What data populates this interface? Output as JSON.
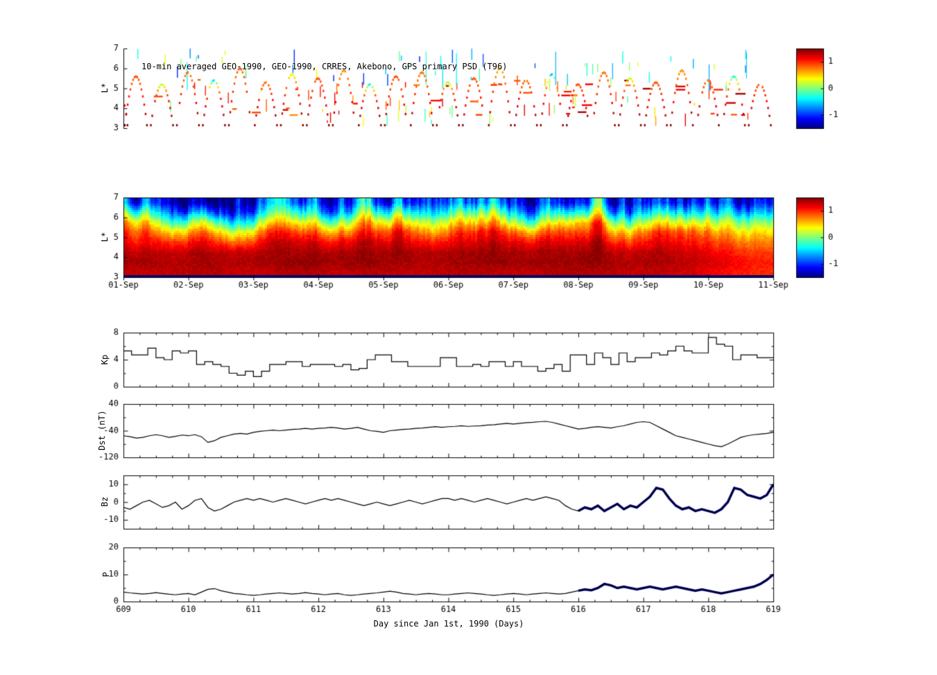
{
  "figure": {
    "background": "#ffffff"
  },
  "x_axis": {
    "label": "Day since Jan 1st, 1990 (Days)",
    "ticks": [
      609,
      610,
      611,
      612,
      613,
      614,
      615,
      616,
      617,
      618,
      619
    ]
  },
  "chart_data": [
    {
      "id": "psd_scatter",
      "type": "scatter",
      "title": "10-min averaged GEO-1990, GEO-1990, CRRES, Akebono, GPS primary PSD (T96)",
      "ylabel": "L*",
      "ylim": [
        3,
        7
      ],
      "yticks": [
        3,
        4,
        5,
        6,
        7
      ],
      "xlim": [
        609,
        619
      ],
      "colorbar": {
        "ticks": [
          1,
          0,
          -1
        ],
        "clim": [
          -1.5,
          1.5
        ],
        "colormap": "jet"
      },
      "arcs": [
        [
          608.72,
          0.34,
          5.5,
          0.8
        ],
        [
          609.02,
          0.34,
          5.6,
          0.9
        ],
        [
          609.42,
          0.34,
          5.2,
          0.2
        ],
        [
          609.82,
          0.34,
          5.8,
          0.8
        ],
        [
          610.22,
          0.34,
          5.4,
          -0.5
        ],
        [
          610.62,
          0.34,
          6.0,
          0.9
        ],
        [
          611.02,
          0.34,
          5.3,
          0.8
        ],
        [
          611.42,
          0.34,
          5.7,
          0.3
        ],
        [
          611.82,
          0.34,
          5.5,
          0.9
        ],
        [
          612.22,
          0.34,
          5.9,
          0.7
        ],
        [
          612.62,
          0.34,
          5.2,
          -0.4
        ],
        [
          613.02,
          0.34,
          5.6,
          0.9
        ],
        [
          613.42,
          0.34,
          5.8,
          0.8
        ],
        [
          613.82,
          0.34,
          5.3,
          0.1
        ],
        [
          614.22,
          0.34,
          5.5,
          0.9
        ],
        [
          614.62,
          0.34,
          6.0,
          0.6
        ],
        [
          615.02,
          0.34,
          5.4,
          0.8
        ],
        [
          615.42,
          0.34,
          5.7,
          -0.6
        ],
        [
          615.82,
          0.34,
          5.2,
          0.9
        ],
        [
          616.22,
          0.34,
          5.8,
          0.8
        ],
        [
          616.62,
          0.34,
          5.5,
          0.2
        ],
        [
          617.02,
          0.34,
          5.3,
          0.9
        ],
        [
          617.42,
          0.34,
          5.9,
          0.7
        ],
        [
          617.82,
          0.34,
          5.4,
          0.8
        ],
        [
          618.22,
          0.34,
          5.6,
          -0.3
        ],
        [
          618.62,
          0.34,
          5.2,
          0.9
        ]
      ],
      "noise_segments": {
        "count": 140,
        "seed": 7
      }
    },
    {
      "id": "psd_heatmap",
      "type": "heatmap",
      "ylabel": "L*",
      "ylim": [
        3,
        7
      ],
      "yticks": [
        3,
        4,
        5,
        6,
        7
      ],
      "xlim": [
        609,
        619
      ],
      "xtick_labels": [
        "01-Sep",
        "02-Sep",
        "03-Sep",
        "04-Sep",
        "05-Sep",
        "06-Sep",
        "07-Sep",
        "08-Sep",
        "09-Sep",
        "10-Sep",
        "11-Sep"
      ],
      "colorbar": {
        "ticks": [
          1,
          0,
          -1
        ],
        "clim": [
          -1.5,
          1.5
        ],
        "colormap": "jet"
      },
      "grid": {
        "t_start": 609,
        "t_step_days": 0.5,
        "l_values_bottom_to_top": [
          3.25,
          3.75,
          4.25,
          4.75,
          5.25,
          5.75,
          6.25,
          6.75
        ],
        "rows_bottom_to_top": [
          [
            1.3,
            1.3,
            1.35,
            1.3,
            1.3,
            1.35,
            1.3,
            1.35,
            1.3,
            1.3,
            1.35,
            1.3,
            1.3,
            1.35,
            1.35,
            1.3,
            1.3,
            1.25,
            1.1,
            1.0
          ],
          [
            1.4,
            1.35,
            1.4,
            1.35,
            1.4,
            1.45,
            1.4,
            1.45,
            1.4,
            1.35,
            1.4,
            1.45,
            1.4,
            1.4,
            1.45,
            1.35,
            1.4,
            1.3,
            1.2,
            1.05
          ],
          [
            1.35,
            1.3,
            1.4,
            1.3,
            1.35,
            1.4,
            1.35,
            1.4,
            1.4,
            1.3,
            1.4,
            1.4,
            1.35,
            1.4,
            1.45,
            1.25,
            1.35,
            1.25,
            1.1,
            0.95
          ],
          [
            1.2,
            1.0,
            1.25,
            0.8,
            1.2,
            1.3,
            1.1,
            1.3,
            1.25,
            1.0,
            1.2,
            1.3,
            1.1,
            1.25,
            1.35,
            0.9,
            1.2,
            1.1,
            0.9,
            0.75
          ],
          [
            1.1,
            0.5,
            1.0,
            0.2,
            0.9,
            1.0,
            0.6,
            1.0,
            1.1,
            0.5,
            1.0,
            1.1,
            0.6,
            1.0,
            1.1,
            0.4,
            1.0,
            0.9,
            0.6,
            0.5
          ],
          [
            0.8,
            -0.2,
            0.5,
            -0.5,
            0.3,
            0.5,
            -0.1,
            0.6,
            0.5,
            0.0,
            0.5,
            0.6,
            -0.2,
            0.5,
            0.9,
            -0.3,
            0.4,
            0.3,
            0.2,
            0.1
          ],
          [
            0.2,
            -0.8,
            -0.3,
            -1.1,
            -0.4,
            -0.1,
            -0.9,
            0.0,
            -0.2,
            -0.7,
            -0.1,
            0.0,
            -0.9,
            -0.2,
            0.1,
            -1.0,
            -0.3,
            -0.4,
            -0.4,
            -0.5
          ],
          [
            -0.5,
            -1.2,
            -1.0,
            -1.3,
            -0.9,
            -0.7,
            -1.2,
            -0.6,
            -1.0,
            -1.2,
            -0.8,
            -0.7,
            -1.3,
            -0.9,
            -0.5,
            -1.4,
            -1.0,
            -1.0,
            -0.9,
            -1.0
          ]
        ]
      }
    },
    {
      "id": "kp",
      "type": "line",
      "step": true,
      "ylabel": "Kp",
      "ylim": [
        0,
        8
      ],
      "yticks": [
        0,
        4,
        8
      ],
      "yminors": [
        2,
        6
      ],
      "t0": 609,
      "dt": 0.125,
      "values": [
        5.3,
        4.7,
        4.7,
        5.7,
        4.3,
        4.0,
        5.3,
        5.0,
        5.3,
        3.3,
        3.7,
        3.3,
        3.0,
        2.0,
        1.7,
        2.3,
        1.5,
        2.3,
        3.3,
        3.3,
        3.7,
        3.7,
        3.0,
        3.3,
        3.3,
        3.3,
        3.0,
        3.3,
        2.5,
        2.7,
        4.0,
        4.7,
        4.7,
        3.7,
        3.7,
        3.0,
        3.0,
        3.0,
        3.0,
        4.3,
        4.3,
        3.0,
        3.0,
        3.3,
        3.0,
        3.7,
        3.7,
        3.0,
        3.7,
        3.0,
        3.0,
        2.3,
        2.7,
        3.3,
        2.3,
        4.7,
        4.7,
        3.3,
        5.0,
        4.3,
        3.3,
        5.0,
        3.7,
        4.3,
        4.3,
        5.0,
        4.7,
        5.3,
        6.0,
        5.3,
        5.0,
        5.0,
        7.3,
        6.3,
        6.0,
        4.0,
        4.7,
        4.7,
        4.3,
        4.3
      ]
    },
    {
      "id": "dst",
      "type": "line",
      "ylabel": "Dst (nT)",
      "ylim": [
        -120,
        40
      ],
      "yticks": [
        40,
        -40,
        -120
      ],
      "yminors": [
        0,
        -80
      ],
      "t0": 609,
      "dt": 0.1,
      "values": [
        -55,
        -58,
        -62,
        -60,
        -55,
        -52,
        -55,
        -60,
        -57,
        -53,
        -55,
        -52,
        -58,
        -75,
        -70,
        -60,
        -55,
        -50,
        -48,
        -50,
        -45,
        -42,
        -40,
        -38,
        -40,
        -38,
        -36,
        -35,
        -33,
        -35,
        -33,
        -32,
        -30,
        -32,
        -35,
        -33,
        -30,
        -35,
        -40,
        -42,
        -45,
        -40,
        -38,
        -36,
        -35,
        -33,
        -32,
        -30,
        -28,
        -30,
        -28,
        -27,
        -25,
        -27,
        -26,
        -25,
        -23,
        -22,
        -20,
        -18,
        -20,
        -18,
        -16,
        -15,
        -13,
        -12,
        -15,
        -20,
        -25,
        -30,
        -35,
        -33,
        -30,
        -28,
        -30,
        -32,
        -28,
        -25,
        -20,
        -15,
        -13,
        -15,
        -25,
        -35,
        -45,
        -55,
        -60,
        -65,
        -70,
        -75,
        -80,
        -85,
        -88,
        -80,
        -70,
        -60,
        -55,
        -52,
        -50,
        -48,
        -45
      ]
    },
    {
      "id": "bz",
      "type": "line",
      "ylabel": "Bz",
      "ylim": [
        -15,
        15
      ],
      "yticks": [
        10,
        0,
        -10
      ],
      "yminors": [
        5,
        -5
      ],
      "t0": 609,
      "dt": 0.1,
      "highlight_from": 616,
      "highlight_color": "#000080",
      "values": [
        -3,
        -4,
        -2,
        0,
        1,
        -1,
        -3,
        -2,
        0,
        -4,
        -2,
        1,
        2,
        -3,
        -5,
        -4,
        -2,
        0,
        1,
        2,
        1,
        2,
        1,
        0,
        1,
        2,
        1,
        0,
        -1,
        0,
        1,
        2,
        1,
        2,
        1,
        0,
        -1,
        -2,
        -1,
        0,
        -1,
        -2,
        -1,
        0,
        1,
        0,
        -1,
        0,
        1,
        2,
        2,
        1,
        2,
        1,
        0,
        1,
        2,
        1,
        0,
        -1,
        0,
        1,
        2,
        1,
        2,
        3,
        2,
        1,
        -2,
        -4,
        -5,
        -3,
        -4,
        -2,
        -5,
        -3,
        -1,
        -4,
        -2,
        -3,
        0,
        3,
        8,
        7,
        2,
        -2,
        -4,
        -3,
        -5,
        -4,
        -5,
        -6,
        -4,
        0,
        8,
        7,
        4,
        3,
        2,
        4,
        10
      ]
    },
    {
      "id": "p",
      "type": "line",
      "ylabel": "P",
      "ylim": [
        0,
        20
      ],
      "yticks": [
        20,
        10,
        0
      ],
      "yminors": [
        5,
        15
      ],
      "t0": 609,
      "dt": 0.1,
      "highlight_from": 616,
      "highlight_color": "#000080",
      "values": [
        3.5,
        3.2,
        3.0,
        2.8,
        3.0,
        3.3,
        3.0,
        2.7,
        2.5,
        2.8,
        3.0,
        2.5,
        3.5,
        4.5,
        4.8,
        4.0,
        3.5,
        3.0,
        2.8,
        2.5,
        2.3,
        2.5,
        2.8,
        3.0,
        3.2,
        3.0,
        2.8,
        3.0,
        3.3,
        3.0,
        2.8,
        2.5,
        2.8,
        3.0,
        2.5,
        2.3,
        2.5,
        2.8,
        3.0,
        3.2,
        3.5,
        3.8,
        3.5,
        3.0,
        2.8,
        2.5,
        2.8,
        3.0,
        2.8,
        2.5,
        2.5,
        2.8,
        3.0,
        3.2,
        3.0,
        2.8,
        2.5,
        2.3,
        2.5,
        2.8,
        3.0,
        2.8,
        2.5,
        2.8,
        3.0,
        3.2,
        3.0,
        2.8,
        3.0,
        3.5,
        4.0,
        4.5,
        4.2,
        5.0,
        6.5,
        6.0,
        5.0,
        5.5,
        5.0,
        4.5,
        5.0,
        5.5,
        5.0,
        4.5,
        5.0,
        5.5,
        5.0,
        4.5,
        4.0,
        4.5,
        4.0,
        3.5,
        3.0,
        3.5,
        4.0,
        4.5,
        5.0,
        5.5,
        6.5,
        8.0,
        10.0
      ]
    }
  ]
}
